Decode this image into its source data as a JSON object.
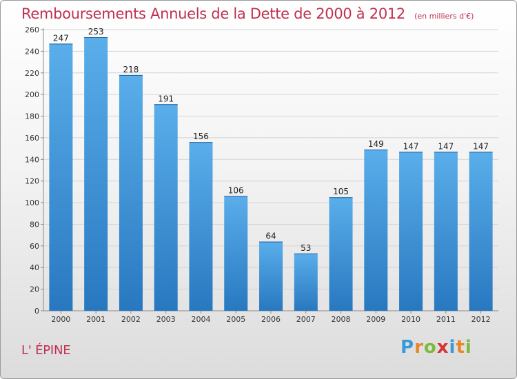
{
  "title": "Remboursements Annuels de la Dette de 2000 à 2012",
  "title_unit": "(en milliers d'€)",
  "commune": "L' ÉPINE",
  "brand": {
    "letters": [
      "P",
      "r",
      "o",
      "x",
      "i",
      "t",
      "i"
    ],
    "colors": [
      "#3a9ad9",
      "#e8862a",
      "#7cba3a",
      "#d6342c",
      "#3a9ad9",
      "#e8862a",
      "#7cba3a"
    ]
  },
  "colors": {
    "bar_top": "#5aaeea",
    "bar_bottom": "#2878c0",
    "title": "#c0304e"
  },
  "chart_data": {
    "type": "bar",
    "categories": [
      "2000",
      "2001",
      "2002",
      "2003",
      "2004",
      "2005",
      "2006",
      "2007",
      "2008",
      "2009",
      "2010",
      "2011",
      "2012"
    ],
    "values": [
      247,
      253,
      218,
      191,
      156,
      106,
      64,
      53,
      105,
      149,
      147,
      147,
      147
    ],
    "title": "Remboursements Annuels de la Dette de 2000 à 2012",
    "xlabel": "",
    "ylabel": "",
    "ylim": [
      0,
      260
    ],
    "yticks": [
      0,
      20,
      40,
      60,
      80,
      100,
      120,
      140,
      160,
      180,
      200,
      220,
      240,
      260
    ],
    "grid": true,
    "legend": "none"
  }
}
